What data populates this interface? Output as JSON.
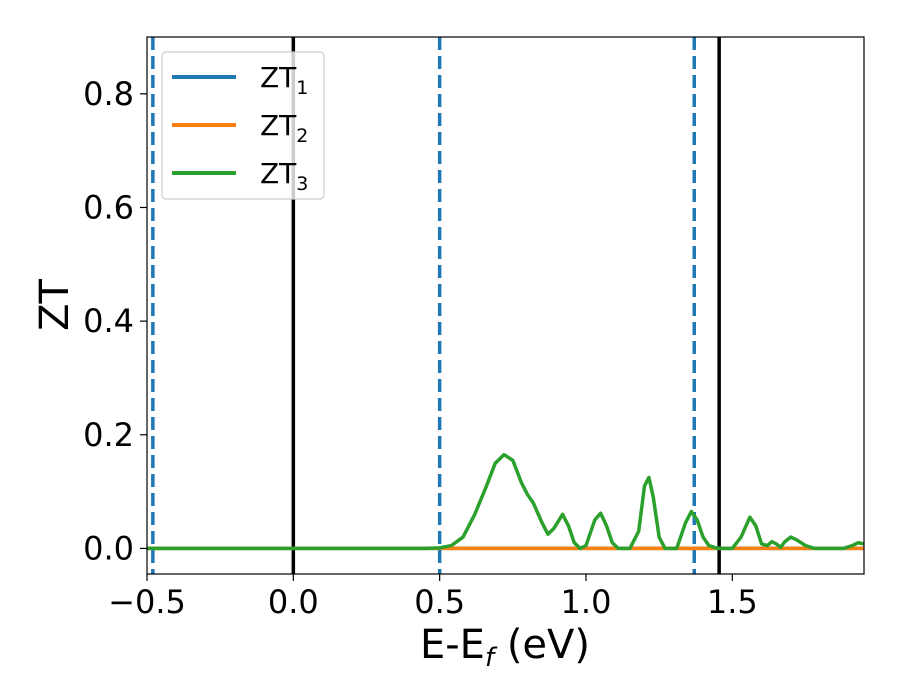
{
  "chart_data": {
    "type": "line",
    "title": "",
    "xlabel": "E-E",
    "xlabel_sub": "f",
    "xlabel_unit": " (eV)",
    "ylabel": "ZT",
    "xlim": [
      -0.5,
      1.95
    ],
    "ylim": [
      -0.045,
      0.9
    ],
    "xticks": [
      -0.5,
      0.0,
      0.5,
      1.0,
      1.5
    ],
    "xtick_labels": [
      "−0.5",
      "0.0",
      "0.5",
      "1.0",
      "1.5"
    ],
    "yticks": [
      0.0,
      0.2,
      0.4,
      0.6,
      0.8
    ],
    "ytick_labels": [
      "0.0",
      "0.2",
      "0.4",
      "0.6",
      "0.8"
    ],
    "grid": false,
    "legend_position": "top-left",
    "series": [
      {
        "name": "ZT",
        "sub": "1",
        "color": "#1f77b4",
        "points": [
          [
            -0.5,
            0.0
          ],
          [
            1.95,
            0.0
          ]
        ]
      },
      {
        "name": "ZT",
        "sub": "2",
        "color": "#ff7f0e",
        "points": [
          [
            -0.5,
            0.0
          ],
          [
            1.95,
            0.0
          ]
        ]
      },
      {
        "name": "ZT",
        "sub": "3",
        "color": "#2ca02c",
        "points": [
          [
            -0.5,
            0.0
          ],
          [
            0.0,
            0.0
          ],
          [
            0.45,
            0.0
          ],
          [
            0.5,
            0.001
          ],
          [
            0.54,
            0.005
          ],
          [
            0.58,
            0.02
          ],
          [
            0.62,
            0.06
          ],
          [
            0.66,
            0.11
          ],
          [
            0.69,
            0.15
          ],
          [
            0.72,
            0.165
          ],
          [
            0.75,
            0.155
          ],
          [
            0.78,
            0.115
          ],
          [
            0.8,
            0.095
          ],
          [
            0.82,
            0.08
          ],
          [
            0.85,
            0.045
          ],
          [
            0.87,
            0.025
          ],
          [
            0.89,
            0.035
          ],
          [
            0.92,
            0.06
          ],
          [
            0.94,
            0.04
          ],
          [
            0.96,
            0.01
          ],
          [
            0.98,
            0.0
          ],
          [
            1.0,
            0.005
          ],
          [
            1.03,
            0.05
          ],
          [
            1.05,
            0.062
          ],
          [
            1.07,
            0.04
          ],
          [
            1.09,
            0.01
          ],
          [
            1.11,
            0.0
          ],
          [
            1.15,
            0.0
          ],
          [
            1.18,
            0.03
          ],
          [
            1.2,
            0.11
          ],
          [
            1.215,
            0.125
          ],
          [
            1.23,
            0.09
          ],
          [
            1.25,
            0.02
          ],
          [
            1.27,
            0.0
          ],
          [
            1.31,
            0.0
          ],
          [
            1.34,
            0.045
          ],
          [
            1.36,
            0.065
          ],
          [
            1.38,
            0.05
          ],
          [
            1.4,
            0.02
          ],
          [
            1.42,
            0.005
          ],
          [
            1.45,
            0.0
          ],
          [
            1.5,
            0.0
          ],
          [
            1.53,
            0.02
          ],
          [
            1.56,
            0.055
          ],
          [
            1.58,
            0.04
          ],
          [
            1.6,
            0.008
          ],
          [
            1.62,
            0.005
          ],
          [
            1.635,
            0.012
          ],
          [
            1.65,
            0.008
          ],
          [
            1.665,
            0.002
          ],
          [
            1.68,
            0.012
          ],
          [
            1.7,
            0.02
          ],
          [
            1.72,
            0.015
          ],
          [
            1.75,
            0.005
          ],
          [
            1.78,
            0.0
          ],
          [
            1.88,
            0.0
          ],
          [
            1.91,
            0.005
          ],
          [
            1.93,
            0.01
          ],
          [
            1.95,
            0.008
          ]
        ]
      }
    ],
    "vlines": [
      {
        "x": -0.48,
        "style": "dashed",
        "color": "#1f77b4"
      },
      {
        "x": 0.0,
        "style": "solid",
        "color": "#000000"
      },
      {
        "x": 0.5,
        "style": "dashed",
        "color": "#1f77b4"
      },
      {
        "x": 1.37,
        "style": "dashed",
        "color": "#1f77b4"
      },
      {
        "x": 1.455,
        "style": "solid",
        "color": "#000000"
      }
    ]
  }
}
